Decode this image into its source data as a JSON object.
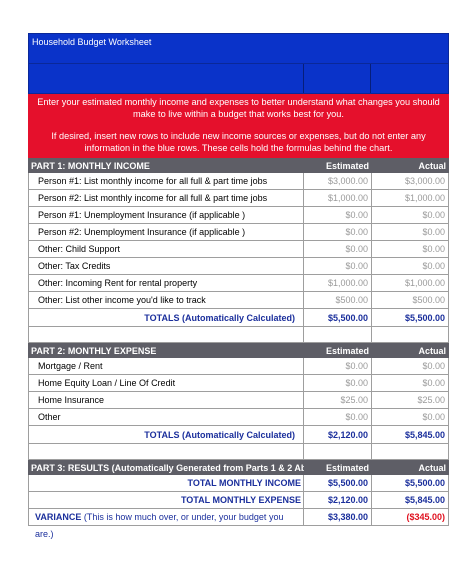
{
  "title": "Household Budget Worksheet",
  "instructions": {
    "line1": "Enter your estimated monthly income and expenses to better understand what changes you should make to live within a budget that works best for you.",
    "line2": "If desired, insert new rows to include new income sources or expenses, but do not enter any information in the blue rows. These cells hold the formulas behind the chart."
  },
  "part1": {
    "heading": "PART 1: MONTHLY INCOME",
    "col_estimated": "Estimated",
    "col_actual": "Actual",
    "rows": [
      {
        "label": "Person #1: List monthly income for all full & part time jobs",
        "estimated": "$3,000.00",
        "actual": "$3,000.00"
      },
      {
        "label": "Person #2: List monthly income for all full & part time jobs",
        "estimated": "$1,000.00",
        "actual": "$1,000.00"
      },
      {
        "label": "Person #1: Unemployment Insurance (if applicable )",
        "estimated": "$0.00",
        "actual": "$0.00"
      },
      {
        "label": "Person #2: Unemployment Insurance (if applicable )",
        "estimated": "$0.00",
        "actual": "$0.00"
      },
      {
        "label": "Other: Child Support",
        "estimated": "$0.00",
        "actual": "$0.00"
      },
      {
        "label": "Other: Tax Credits",
        "estimated": "$0.00",
        "actual": "$0.00"
      },
      {
        "label": "Other: Incoming Rent for rental property",
        "estimated": "$1,000.00",
        "actual": "$1,000.00"
      },
      {
        "label": "Other: List other income you'd like to  track",
        "estimated": "$500.00",
        "actual": "$500.00"
      }
    ],
    "total_label": "TOTALS (Automatically Calculated)",
    "total_estimated": "$5,500.00",
    "total_actual": "$5,500.00"
  },
  "part2": {
    "heading": "PART 2: MONTHLY EXPENSE",
    "col_estimated": "Estimated",
    "col_actual": "Actual",
    "rows": [
      {
        "label": "Mortgage / Rent",
        "estimated": "$0.00",
        "actual": "$0.00"
      },
      {
        "label": "Home Equity Loan / Line Of Credit",
        "estimated": "$0.00",
        "actual": "$0.00"
      },
      {
        "label": "Home Insurance",
        "estimated": "$25.00",
        "actual": "$25.00"
      },
      {
        "label": "Other",
        "estimated": "$0.00",
        "actual": "$0.00"
      }
    ],
    "total_label": "TOTALS (Automatically Calculated)",
    "total_estimated": "$2,120.00",
    "total_actual": "$5,845.00"
  },
  "part3": {
    "heading": "PART 3: RESULTS (Automatically Generated from Parts 1 & 2 Ab",
    "col_estimated": "Estimated",
    "col_actual": "Actual",
    "income_label": "TOTAL MONTHLY INCOME",
    "income_estimated": "$5,500.00",
    "income_actual": "$5,500.00",
    "expense_label": "TOTAL MONTHLY EXPENSE",
    "expense_estimated": "$2,120.00",
    "expense_actual": "$5,845.00",
    "variance_label": "VARIANCE",
    "variance_note": " (This is how much over, or under, your budget you are.)",
    "variance_estimated": "$3,380.00",
    "variance_actual": "($345.00)"
  },
  "colors": {
    "blue": "#0a33c9",
    "red": "#e5102c",
    "header_gray": "#5e5e66",
    "total_blue": "#1b2f9c",
    "negative_red": "#e0101e"
  }
}
